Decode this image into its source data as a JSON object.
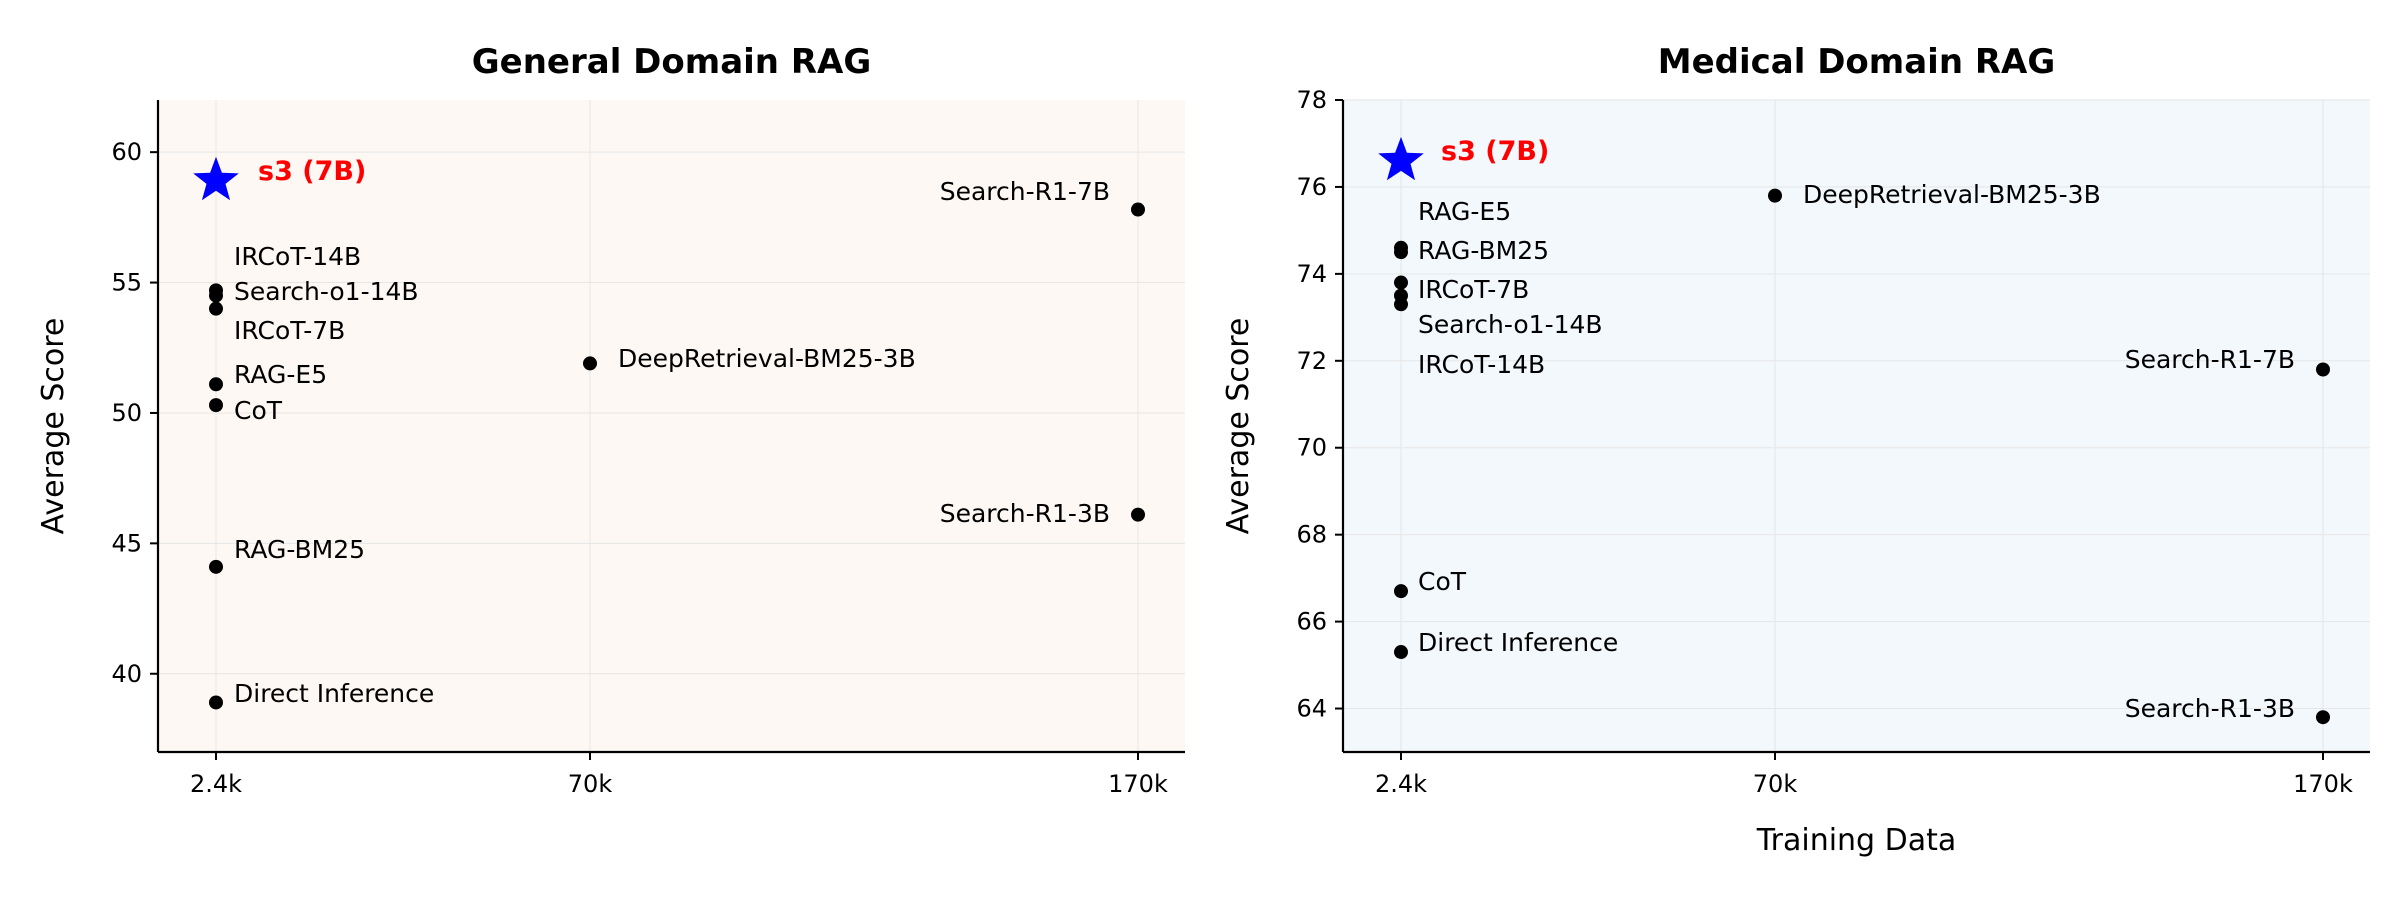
{
  "chart_data": [
    {
      "type": "scatter",
      "title": "General Domain RAG",
      "xlabel": "",
      "ylabel": "Average Score",
      "x_scale": "categorical",
      "x_ticks": [
        "2.4k",
        "70k",
        "170k"
      ],
      "y_ticks": [
        40,
        45,
        50,
        55,
        60
      ],
      "ylim": [
        37,
        62
      ],
      "grid": true,
      "background": "#fdf8f3",
      "points": [
        {
          "label": "s3 (7B)",
          "x": "2.4k",
          "y": 58.9,
          "highlight": true
        },
        {
          "label": "IRCoT-14B",
          "x": "2.4k",
          "y": 54.7
        },
        {
          "label": "Search-o1-14B",
          "x": "2.4k",
          "y": 54.5
        },
        {
          "label": "IRCoT-7B",
          "x": "2.4k",
          "y": 54.0
        },
        {
          "label": "RAG-E5",
          "x": "2.4k",
          "y": 51.1
        },
        {
          "label": "CoT",
          "x": "2.4k",
          "y": 50.3
        },
        {
          "label": "RAG-BM25",
          "x": "2.4k",
          "y": 44.1
        },
        {
          "label": "Direct Inference",
          "x": "2.4k",
          "y": 38.9
        },
        {
          "label": "DeepRetrieval-BM25-3B",
          "x": "70k",
          "y": 51.9
        },
        {
          "label": "Search-R1-7B",
          "x": "170k",
          "y": 57.8
        },
        {
          "label": "Search-R1-3B",
          "x": "170k",
          "y": 46.1
        }
      ]
    },
    {
      "type": "scatter",
      "title": "Medical Domain RAG",
      "xlabel": "Training Data",
      "ylabel": "Average Score",
      "x_scale": "categorical",
      "x_ticks": [
        "2.4k",
        "70k",
        "170k"
      ],
      "y_ticks": [
        64,
        66,
        68,
        70,
        72,
        74,
        76,
        78
      ],
      "ylim": [
        63,
        78
      ],
      "grid": true,
      "background": "#f3f8fc",
      "points": [
        {
          "label": "s3 (7B)",
          "x": "2.4k",
          "y": 76.6,
          "highlight": true
        },
        {
          "label": "RAG-E5",
          "x": "2.4k",
          "y": 74.6
        },
        {
          "label": "RAG-BM25",
          "x": "2.4k",
          "y": 74.5
        },
        {
          "label": "IRCoT-7B",
          "x": "2.4k",
          "y": 73.8
        },
        {
          "label": "Search-o1-14B",
          "x": "2.4k",
          "y": 73.5
        },
        {
          "label": "IRCoT-14B",
          "x": "2.4k",
          "y": 73.3
        },
        {
          "label": "CoT",
          "x": "2.4k",
          "y": 66.7
        },
        {
          "label": "Direct Inference",
          "x": "2.4k",
          "y": 65.3
        },
        {
          "label": "DeepRetrieval-BM25-3B",
          "x": "70k",
          "y": 75.8
        },
        {
          "label": "Search-R1-7B",
          "x": "170k",
          "y": 71.8
        },
        {
          "label": "Search-R1-3B",
          "x": "170k",
          "y": 63.8
        }
      ]
    }
  ],
  "colors": {
    "point": "#000000",
    "highlight_marker": "#0000ff",
    "highlight_label": "#ff0000",
    "grid": "#e6e6e6",
    "axis": "#000000"
  }
}
